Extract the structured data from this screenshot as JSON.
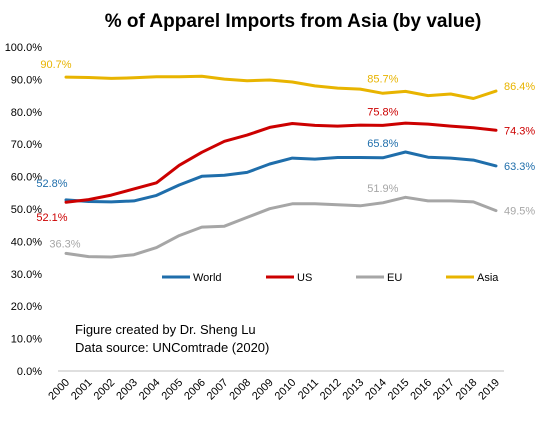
{
  "chart_data": {
    "type": "line",
    "title": "% of Apparel Imports from Asia (by value)",
    "xlabel": "",
    "ylabel": "",
    "ylim": [
      0,
      100
    ],
    "yticks": [
      "0.0%",
      "10.0%",
      "20.0%",
      "30.0%",
      "40.0%",
      "50.0%",
      "60.0%",
      "70.0%",
      "80.0%",
      "90.0%",
      "100.0%"
    ],
    "categories": [
      "2000",
      "2001",
      "2002",
      "2003",
      "2004",
      "2005",
      "2006",
      "2007",
      "2008",
      "2009",
      "2010",
      "2011",
      "2012",
      "2013",
      "2014",
      "2015",
      "2016",
      "2017",
      "2018",
      "2019"
    ],
    "grid": false,
    "legend_position": "bottom-center",
    "series": [
      {
        "name": "World",
        "color": "#1f6eab",
        "values": [
          52.8,
          52.3,
          52.2,
          52.5,
          54.2,
          57.4,
          60.1,
          60.4,
          61.3,
          63.9,
          65.7,
          65.4,
          65.9,
          65.9,
          65.8,
          67.6,
          66.0,
          65.7,
          65.1,
          63.3
        ]
      },
      {
        "name": "US",
        "color": "#cc0000",
        "values": [
          52.1,
          52.9,
          54.3,
          56.2,
          58.1,
          63.5,
          67.5,
          70.9,
          72.8,
          75.2,
          76.4,
          75.8,
          75.6,
          75.9,
          75.8,
          76.5,
          76.2,
          75.6,
          75.1,
          74.3
        ]
      },
      {
        "name": "EU",
        "color": "#a6a6a6",
        "values": [
          36.3,
          35.3,
          35.2,
          35.9,
          38.1,
          41.8,
          44.4,
          44.7,
          47.4,
          50.1,
          51.6,
          51.6,
          51.3,
          51.0,
          51.9,
          53.6,
          52.5,
          52.5,
          52.2,
          49.5
        ]
      },
      {
        "name": "Asia",
        "color": "#e8b400",
        "values": [
          90.7,
          90.6,
          90.3,
          90.5,
          90.8,
          90.8,
          91.0,
          90.1,
          89.6,
          89.8,
          89.2,
          88.0,
          87.3,
          87.0,
          85.7,
          86.3,
          85.0,
          85.5,
          84.1,
          86.4
        ]
      }
    ],
    "data_labels": [
      {
        "series": "World",
        "year": "2000",
        "text": "52.8%"
      },
      {
        "series": "World",
        "year": "2014",
        "text": "65.8%"
      },
      {
        "series": "World",
        "year": "2019",
        "text": "63.3%"
      },
      {
        "series": "US",
        "year": "2000",
        "text": "52.1%"
      },
      {
        "series": "US",
        "year": "2014",
        "text": "75.8%"
      },
      {
        "series": "US",
        "year": "2019",
        "text": "74.3%"
      },
      {
        "series": "EU",
        "year": "2000",
        "text": "36.3%"
      },
      {
        "series": "EU",
        "year": "2014",
        "text": "51.9%"
      },
      {
        "series": "EU",
        "year": "2019",
        "text": "49.5%"
      },
      {
        "series": "Asia",
        "year": "2000",
        "text": "90.7%"
      },
      {
        "series": "Asia",
        "year": "2014",
        "text": "85.7%"
      },
      {
        "series": "Asia",
        "year": "2019",
        "text": "86.4%"
      }
    ]
  },
  "annotation": {
    "line1": "Figure created by Dr. Sheng Lu",
    "line2": "Data source: UNComtrade (2020)"
  }
}
